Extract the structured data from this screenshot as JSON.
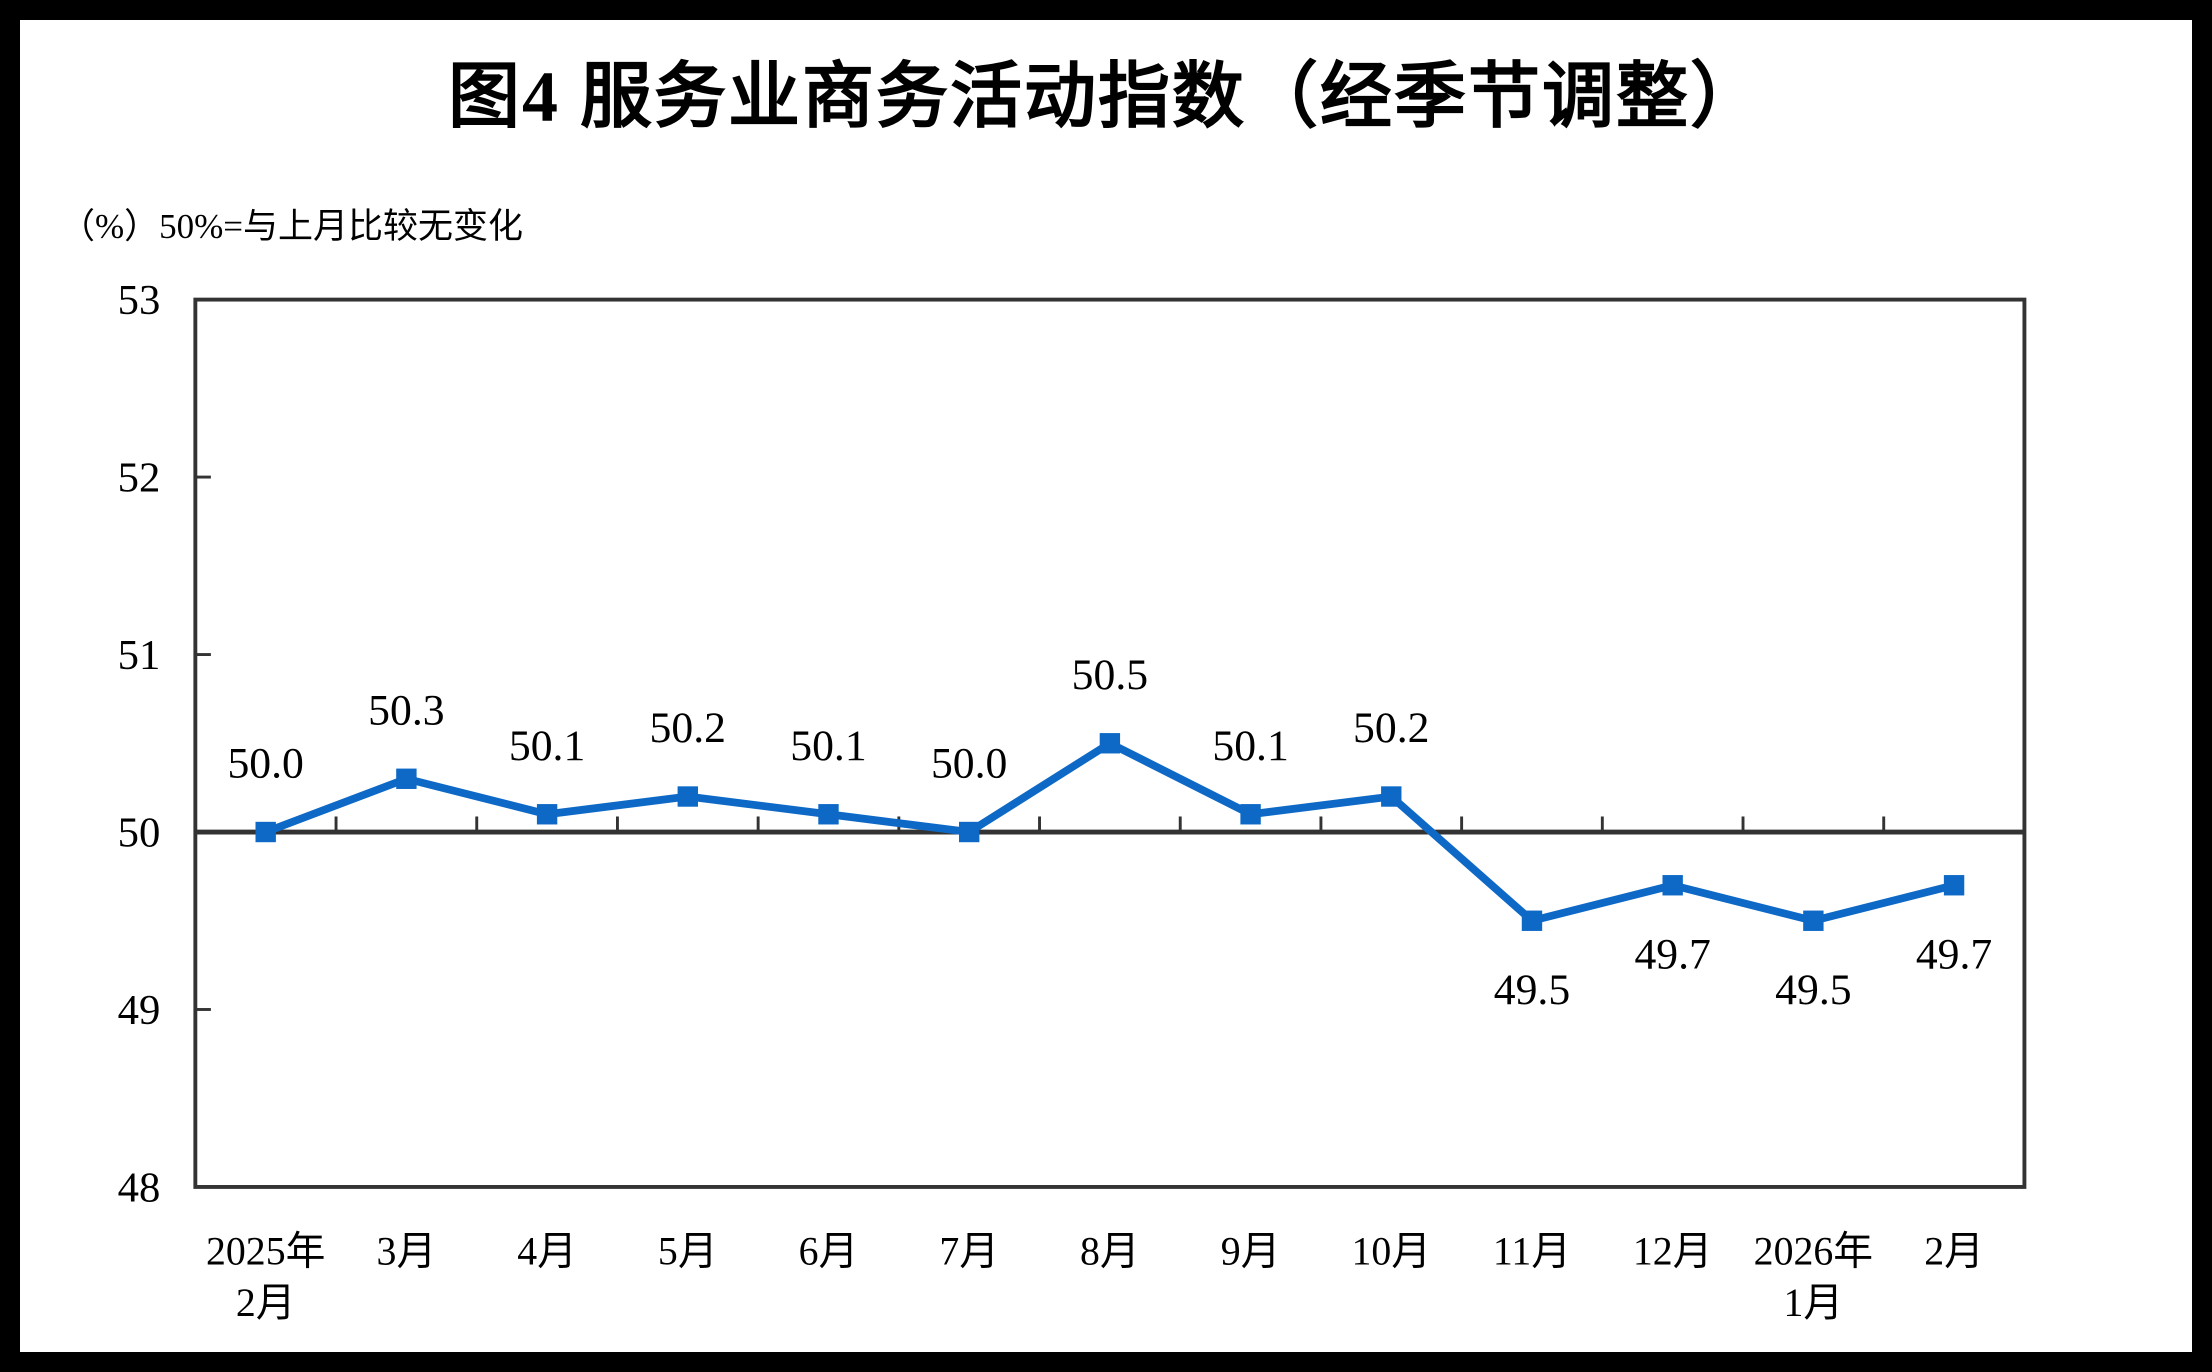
{
  "title": "图4  服务业商务活动指数（经季节调整）",
  "unit_note": "（%）50%=与上月比较无变化",
  "colors": {
    "line": "#0E69C6",
    "marker": "#0E69C6",
    "axis": "#333333",
    "text": "#000000",
    "background": "#FFFFFF",
    "frame": "#000000"
  },
  "chart_data": {
    "type": "line",
    "title": "图4  服务业商务活动指数（经季节调整）",
    "subtitle": "（%）50%=与上月比较无变化",
    "categories": [
      "2025年\n2月",
      "3月",
      "4月",
      "5月",
      "6月",
      "7月",
      "8月",
      "9月",
      "10月",
      "11月",
      "12月",
      "2026年\n1月",
      "2月"
    ],
    "values": [
      50.0,
      50.3,
      50.1,
      50.2,
      50.1,
      50.0,
      50.5,
      50.1,
      50.2,
      49.5,
      49.7,
      49.5,
      49.7
    ],
    "data_labels": [
      "50.0",
      "50.3",
      "50.1",
      "50.2",
      "50.1",
      "50.0",
      "50.5",
      "50.1",
      "50.2",
      "49.5",
      "49.7",
      "49.5",
      "49.7"
    ],
    "xlabel": "",
    "ylabel": "（%）",
    "ylim": [
      48,
      53
    ],
    "y_ticks": [
      48,
      49,
      50,
      51,
      52,
      53
    ],
    "baseline": 50,
    "grid": "off",
    "legend": "none",
    "marker": "square"
  }
}
